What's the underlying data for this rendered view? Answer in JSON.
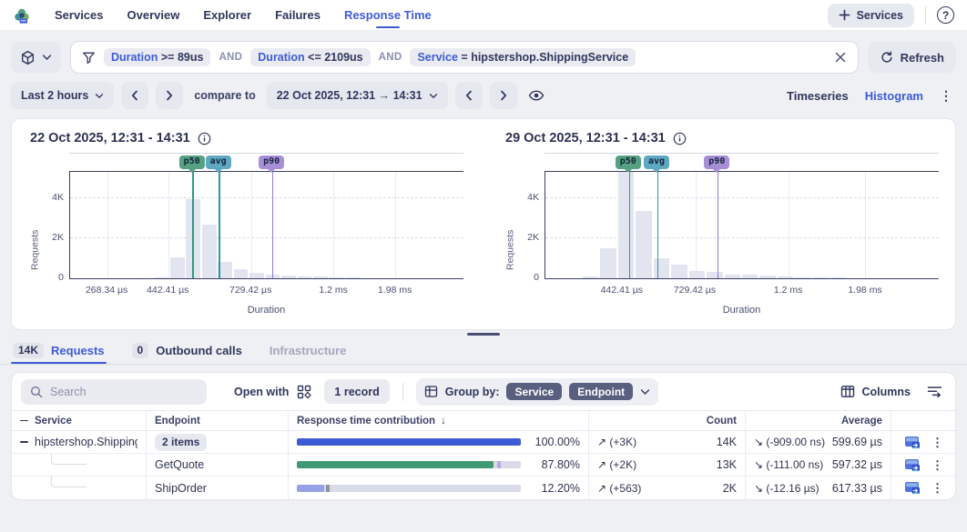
{
  "nav": {
    "items": [
      "Services",
      "Overview",
      "Explorer",
      "Failures",
      "Response Time"
    ],
    "active_item": "Response Time",
    "add_button_label": "Services"
  },
  "icons": {
    "help": "?",
    "kebab": "⋮"
  },
  "filter_bar": {
    "operator": "AND",
    "filters": [
      {
        "field": "Duration",
        "condition": ">= 89us"
      },
      {
        "field": "Duration",
        "condition": "<= 2109us"
      },
      {
        "field": "Service",
        "condition": "= hipstershop.ShippingService"
      }
    ],
    "refresh_label": "Refresh"
  },
  "time_bar": {
    "range_label": "Last 2 hours",
    "compare_label": "compare to",
    "compare_range": "22 Oct 2025, 12:31 → 14:31",
    "view_options": [
      "Timeseries",
      "Histogram"
    ],
    "active_view": "Histogram"
  },
  "chart_data": [
    {
      "type": "bar",
      "title": "22 Oct 2025, 12:31 - 14:31",
      "xlabel": "Duration",
      "ylabel": "Requests",
      "ylim": [
        0,
        5400
      ],
      "y_ticks": [
        "0",
        "2K",
        "4K"
      ],
      "x_ticks": [
        {
          "label": "268.34 µs",
          "pct": 9.5
        },
        {
          "label": "442.41 µs",
          "pct": 25
        },
        {
          "label": "729.42 µs",
          "pct": 46
        },
        {
          "label": "1.2 ms",
          "pct": 67
        },
        {
          "label": "1.98 ms",
          "pct": 82.6
        }
      ],
      "bins_start_pct": 21.4,
      "bin_width_pct": 4.04,
      "bins": [
        30,
        1060,
        3950,
        2700,
        810,
        450,
        280,
        170,
        120,
        90,
        70,
        40,
        30,
        20
      ],
      "markers": [
        {
          "label": "p50",
          "pct": 31.1,
          "badge_color": "#55a181",
          "line_color": "#2d9b82"
        },
        {
          "label": "avg",
          "pct": 37.8,
          "badge_color": "#5ea8c2",
          "line_color": "#2d98ab"
        },
        {
          "label": "p90",
          "pct": 51.3,
          "badge_color": "#a78fd8",
          "line_color": "#8a80d6"
        }
      ]
    },
    {
      "type": "bar",
      "title": "29 Oct 2025, 12:31 - 14:31",
      "xlabel": "Duration",
      "ylabel": "Requests",
      "ylim": [
        0,
        5400
      ],
      "y_ticks": [
        "0",
        "2K",
        "4K"
      ],
      "x_ticks": [
        {
          "label": "442.41 µs",
          "pct": 19.6
        },
        {
          "label": "729.42 µs",
          "pct": 38.1
        },
        {
          "label": "1.2 ms",
          "pct": 61.8
        },
        {
          "label": "1.98 ms",
          "pct": 81.3
        }
      ],
      "bins_start_pct": 9.5,
      "bin_width_pct": 4.5,
      "bins": [
        80,
        1500,
        5500,
        3350,
        1000,
        700,
        380,
        300,
        200,
        170,
        120,
        100,
        60,
        50,
        30
      ],
      "markers": [
        {
          "label": "p50",
          "pct": 21.2,
          "badge_color": "#55a181",
          "line_color": "#2d9b82"
        },
        {
          "label": "avg",
          "pct": 28.4,
          "badge_color": "#5ea8c2",
          "line_color": "#2d98ab"
        },
        {
          "label": "p90",
          "pct": 43.7,
          "badge_color": "#a78fd8",
          "line_color": "#8a80d6"
        }
      ]
    }
  ],
  "tabs": {
    "items": [
      {
        "badge": "14K",
        "label": "Requests"
      },
      {
        "badge": "0",
        "label": "Outbound calls"
      },
      {
        "badge": "",
        "label": "Infrastructure"
      }
    ],
    "active": "Requests"
  },
  "toolbar": {
    "search_placeholder": "Search",
    "open_with_label": "Open with",
    "record_count_label": "1 record",
    "group_by_label": "Group by:",
    "group_chips": [
      "Service",
      "Endpoint"
    ],
    "columns_label": "Columns"
  },
  "table": {
    "columns": [
      "Service",
      "Endpoint",
      "Response time contribution",
      "Count",
      "Average"
    ],
    "sort_column": "Response time contribution",
    "sort_indicator": "↓",
    "rows": [
      {
        "service": "hipstershop.ShippingService",
        "endpoint_badge": "2 items",
        "contribution_pct": "100.00%",
        "contribution_value": 100,
        "bar_color": "#3e5bd6",
        "marker_pct": null,
        "marker_color": null,
        "count_trend": "↗ (+3K)",
        "count": "14K",
        "avg_trend": "↘ (-909.00 ns)",
        "average": "599.69 µs"
      },
      {
        "service": "",
        "endpoint": "GetQuote",
        "contribution_pct": "87.80%",
        "contribution_value": 87.8,
        "bar_color": "#3f9a74",
        "marker_pct": 89.3,
        "marker_color": "#b6a6ea",
        "count_trend": "↗ (+2K)",
        "count": "13K",
        "avg_trend": "↘ (-111.00 ns)",
        "average": "597.32 µs"
      },
      {
        "service": "",
        "endpoint": "ShipOrder",
        "contribution_pct": "12.20%",
        "contribution_value": 12.2,
        "bar_color": "#96a0e6",
        "marker_pct": 12.9,
        "marker_color": "#8d93a4",
        "count_trend": "↗ (+563)",
        "count": "2K",
        "avg_trend": "↘ (-12.16 µs)",
        "average": "617.33 µs"
      }
    ]
  }
}
